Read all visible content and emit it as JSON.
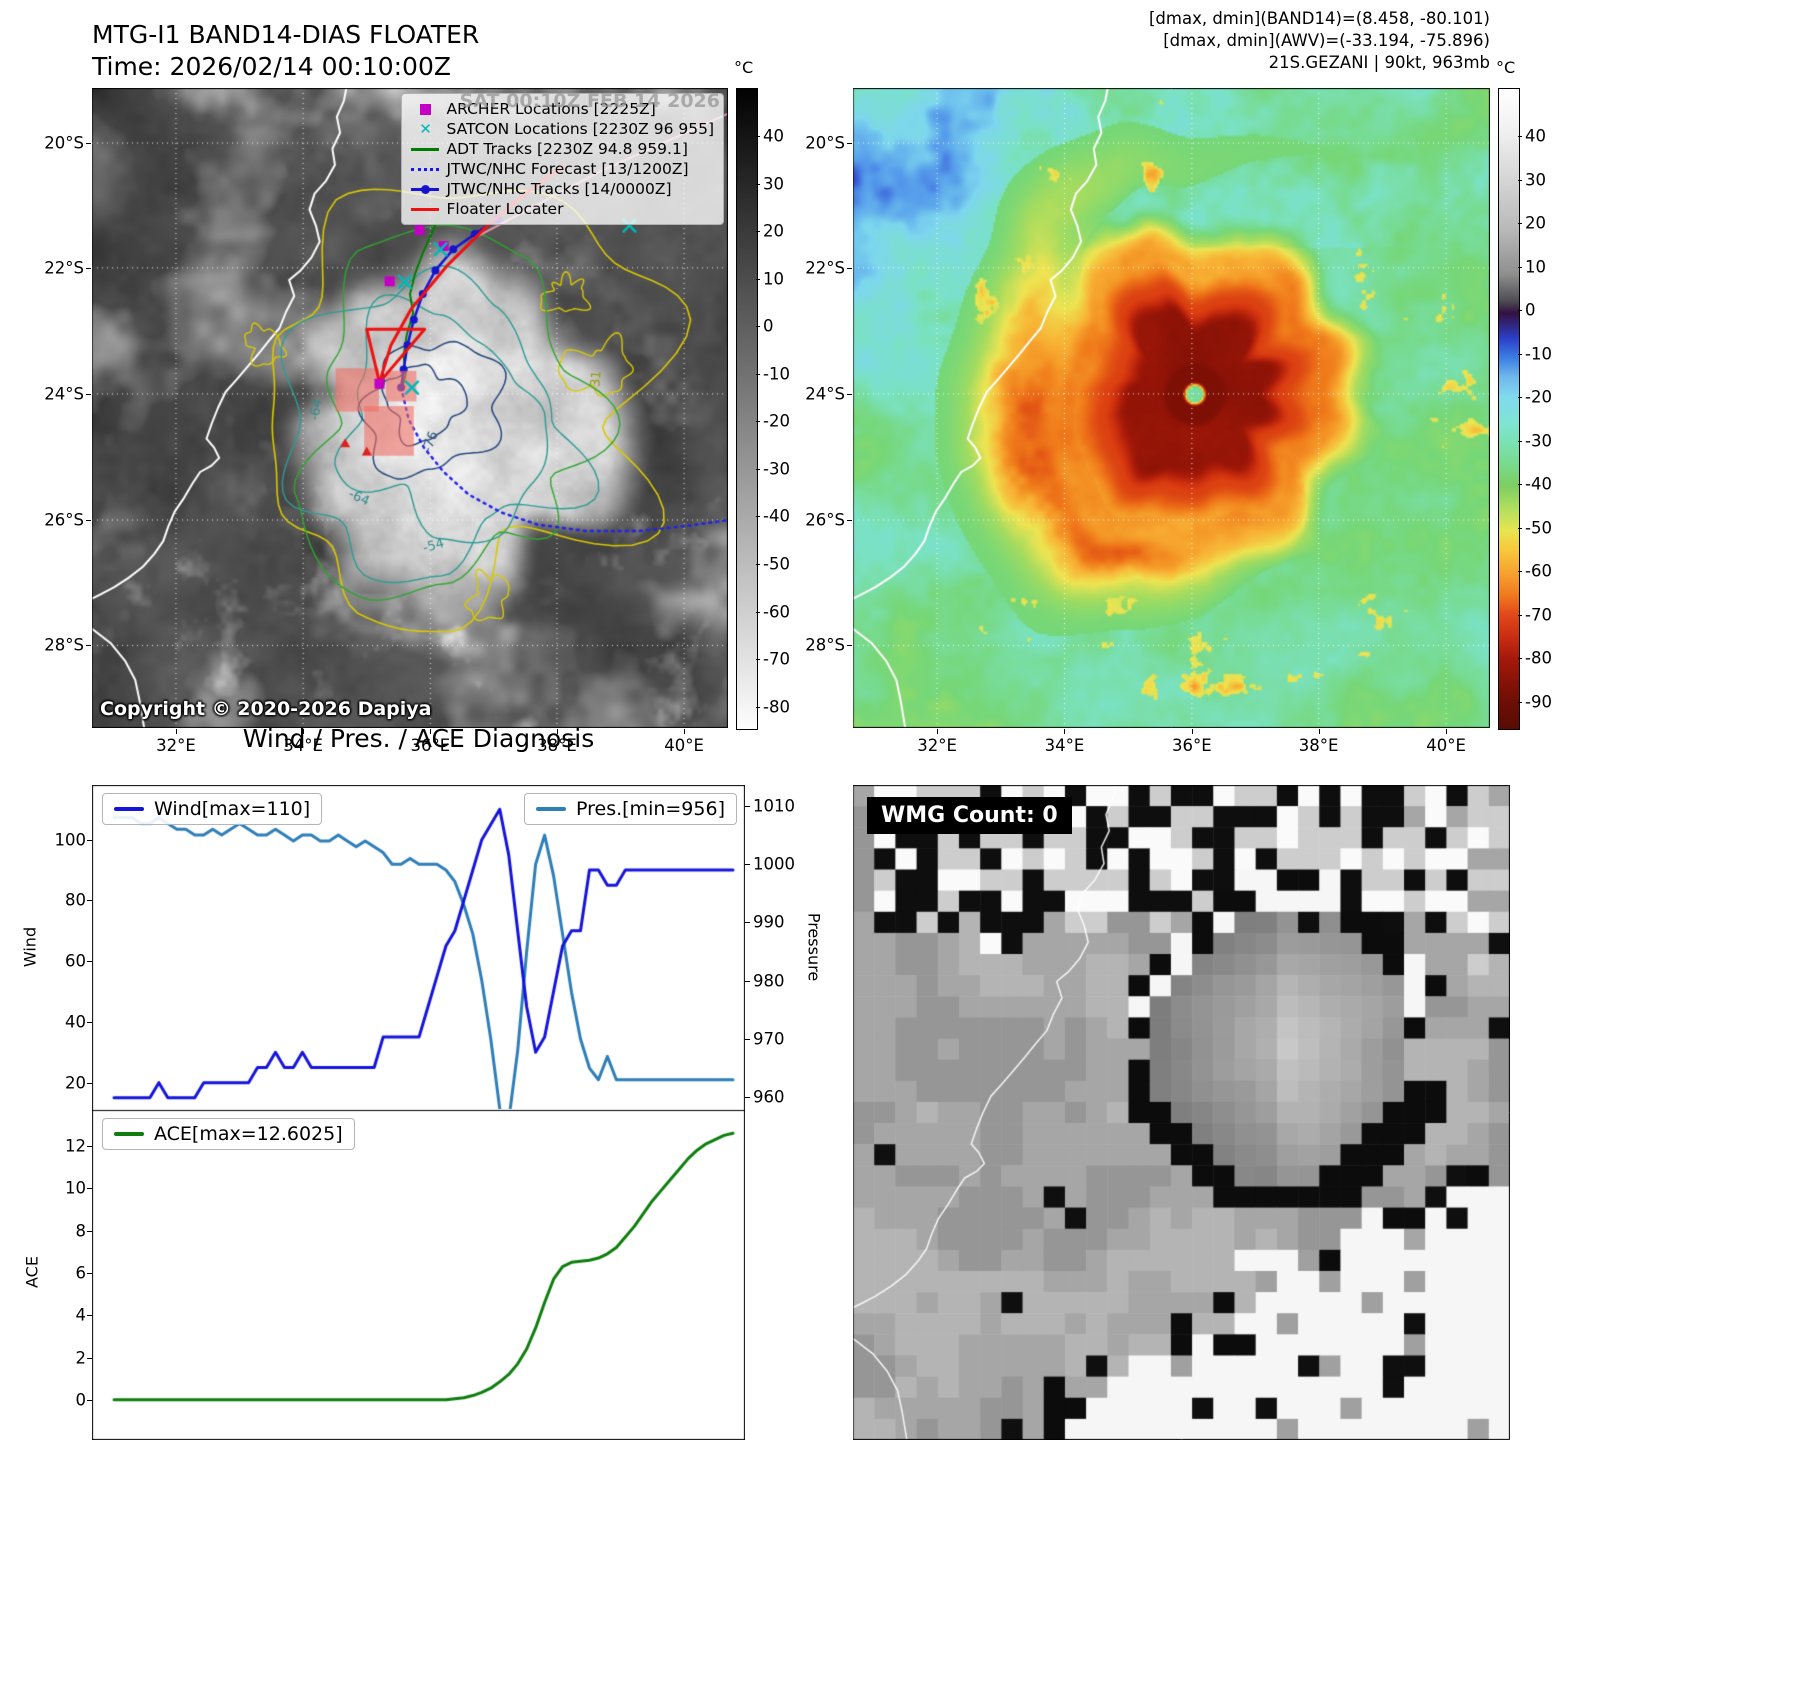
{
  "panels": {
    "band14": {
      "title": "MTG-I1 BAND14-DIAS FLOATER",
      "subtitle": "Time: 2026/02/14 00:10:00Z",
      "watermark": "SAT 00:10Z FEB 14 2026",
      "copyright": "Copyright © 2020-2026 Dapiya",
      "colorbar_label": "°C",
      "colorbar_ticks": [
        "40",
        "30",
        "20",
        "10",
        "0",
        "-10",
        "-20",
        "-30",
        "-40",
        "-50",
        "-60",
        "-70",
        "-80"
      ],
      "x_ticks": [
        "32°E",
        "34°E",
        "36°E",
        "38°E",
        "40°E"
      ],
      "y_ticks": [
        "20°S",
        "22°S",
        "24°S",
        "26°S",
        "28°S"
      ],
      "legend": [
        {
          "label": "ARCHER Locations [2225Z]",
          "marker": "square",
          "color": "#c400c4"
        },
        {
          "label": "SATCON Locations [2230Z 96 955]",
          "marker": "x",
          "color": "#00b8b8"
        },
        {
          "label": "ADT Tracks [2230Z 94.8 959.1]",
          "marker": "line",
          "color": "#007d00"
        },
        {
          "label": "JTWC/NHC Forecast [13/1200Z]",
          "marker": "dotted",
          "color": "#1414ff"
        },
        {
          "label": "JTWC/NHC Tracks [14/0000Z]",
          "marker": "line-dot",
          "color": "#1414cc"
        },
        {
          "label": "Floater Locater",
          "marker": "line",
          "color": "#ee1111"
        }
      ],
      "contour_labels": [
        {
          "text": "-64",
          "color": "#2e8b8b"
        },
        {
          "text": "-76",
          "color": "#27517e"
        },
        {
          "text": "-31",
          "color": "#9a9a00"
        },
        {
          "text": "-54",
          "color": "#2e8b8b"
        },
        {
          "text": "-64",
          "color": "#2e8b8b"
        }
      ]
    },
    "awv": {
      "annotations": {
        "line1": "[dmax, dmin](BAND14)=(8.458, -80.101)",
        "line2": "[dmax, dmin](AWV)=(-33.194, -75.896)",
        "line3": "21S.GEZANI | 90kt, 963mb"
      },
      "colorbar_label": "°C",
      "colorbar_ticks": [
        "40",
        "30",
        "20",
        "10",
        "0",
        "-10",
        "-20",
        "-30",
        "-40",
        "-50",
        "-60",
        "-70",
        "-80",
        "-90"
      ],
      "x_ticks": [
        "32°E",
        "34°E",
        "36°E",
        "38°E",
        "40°E"
      ],
      "y_ticks": [
        "20°S",
        "22°S",
        "24°S",
        "26°S",
        "28°S"
      ]
    },
    "diagnosis": {
      "title": "Wind / Pres. / ACE Diagnosis",
      "wind_legend": "Wind[max=110]",
      "pres_legend": "Pres.[min=956]",
      "ace_legend": "ACE[max=12.6025]",
      "wind_axis": "Wind",
      "pressure_axis": "Pressure",
      "ace_axis": "ACE"
    },
    "wmg": {
      "count_label": "WMG Count: 0"
    }
  },
  "chart_data": [
    {
      "type": "line",
      "title": "Wind / Pres. / ACE Diagnosis",
      "x_label": "",
      "n_points": 70,
      "series": [
        {
          "name": "Wind[max=110]",
          "axis": "left",
          "color": "#1414dd",
          "max": 110,
          "values": [
            15,
            15,
            15,
            15,
            15,
            20,
            15,
            15,
            15,
            15,
            20,
            20,
            20,
            20,
            20,
            20,
            25,
            25,
            30,
            25,
            25,
            30,
            25,
            25,
            25,
            25,
            25,
            25,
            25,
            25,
            35,
            35,
            35,
            35,
            35,
            45,
            55,
            65,
            70,
            80,
            90,
            100,
            105,
            110,
            95,
            70,
            45,
            30,
            35,
            50,
            65,
            70,
            70,
            90,
            90,
            85,
            85,
            90,
            90,
            90,
            90,
            90,
            90,
            90,
            90,
            90,
            90,
            90,
            90,
            90
          ]
        },
        {
          "name": "Pres.[min=956]",
          "axis": "right",
          "color": "#2e7eb8",
          "min": 956,
          "values": [
            1008,
            1008,
            1008,
            1007,
            1007,
            1008,
            1007,
            1006,
            1006,
            1005,
            1005,
            1006,
            1005,
            1006,
            1007,
            1006,
            1005,
            1005,
            1006,
            1005,
            1004,
            1005,
            1005,
            1004,
            1004,
            1005,
            1004,
            1003,
            1004,
            1003,
            1002,
            1000,
            1000,
            1001,
            1000,
            1000,
            1000,
            999,
            997,
            993,
            988,
            980,
            970,
            958,
            956,
            968,
            985,
            1000,
            1005,
            998,
            988,
            978,
            970,
            965,
            963,
            967,
            963,
            963,
            963,
            963,
            963,
            963,
            963,
            963,
            963,
            963,
            963,
            963,
            963,
            963
          ]
        }
      ],
      "left_axis": {
        "label": "Wind",
        "ticks": [
          20,
          40,
          60,
          80,
          100
        ],
        "range": [
          11,
          118
        ]
      },
      "right_axis": {
        "label": "Pressure",
        "ticks": [
          960,
          970,
          980,
          990,
          1000,
          1010
        ],
        "range": [
          957.8,
          1013.6
        ]
      },
      "legend_position": [
        "upper left",
        "upper right"
      ],
      "grid": false
    },
    {
      "type": "line",
      "title": "",
      "x_label": "",
      "n_points": 70,
      "series": [
        {
          "name": "ACE[max=12.6025]",
          "axis": "left",
          "color": "#0e7d0e",
          "max": 12.6025,
          "values": [
            0,
            0,
            0,
            0,
            0,
            0,
            0,
            0,
            0,
            0,
            0,
            0,
            0,
            0,
            0,
            0,
            0,
            0,
            0,
            0,
            0,
            0,
            0,
            0,
            0,
            0,
            0,
            0,
            0,
            0,
            0,
            0,
            0,
            0,
            0,
            0,
            0,
            0,
            0.05,
            0.1,
            0.2,
            0.35,
            0.55,
            0.85,
            1.2,
            1.7,
            2.4,
            3.4,
            4.6,
            5.7,
            6.3,
            6.5,
            6.55,
            6.6,
            6.7,
            6.9,
            7.2,
            7.7,
            8.2,
            8.8,
            9.4,
            9.9,
            10.4,
            10.9,
            11.4,
            11.8,
            12.1,
            12.3,
            12.5,
            12.6025
          ]
        }
      ],
      "left_axis": {
        "label": "ACE",
        "ticks": [
          0,
          2,
          4,
          6,
          8,
          10,
          12
        ],
        "range": [
          -1.9,
          13.7
        ]
      },
      "legend_position": [
        "upper left"
      ],
      "grid": false
    }
  ]
}
